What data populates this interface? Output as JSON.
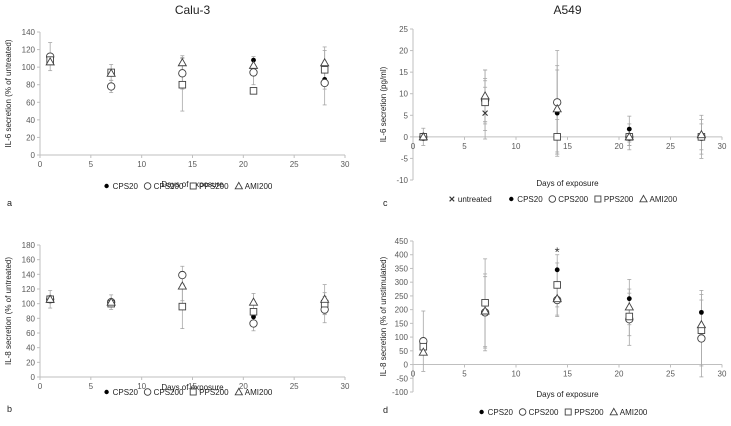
{
  "chart_data": [
    {
      "type": "scatter",
      "panel_label": "a",
      "title": "Calu-3",
      "xlabel": "Days of exposure",
      "ylabel": "IL-6 secretion (% of untreated)",
      "xlim": [
        0,
        30
      ],
      "ylim": [
        0,
        140
      ],
      "xticks": [
        "0",
        "5",
        "10",
        "15",
        "20",
        "25",
        "30"
      ],
      "yticks": [
        "0",
        "20",
        "40",
        "60",
        "80",
        "100",
        "120",
        "140"
      ],
      "grid": false,
      "legend_position": "bottom",
      "series": [
        {
          "name": "CPS20",
          "marker": "dot",
          "points": [
            [
              1,
              108,
              null
            ],
            [
              7,
              80,
              null
            ],
            [
              14,
              93,
              null
            ],
            [
              21,
              108,
              null
            ],
            [
              28,
              86,
              null
            ]
          ]
        },
        {
          "name": "CPS200",
          "marker": "circle",
          "points": [
            [
              1,
              112,
              16
            ],
            [
              7,
              78,
              7
            ],
            [
              14,
              93,
              18
            ],
            [
              21,
              94,
              14
            ],
            [
              28,
              82,
              25
            ]
          ]
        },
        {
          "name": "PPS200",
          "marker": "square",
          "points": [
            [
              1,
              108,
              null
            ],
            [
              7,
              94,
              9
            ],
            [
              14,
              80,
              30
            ],
            [
              21,
              73,
              null
            ],
            [
              28,
              97,
              22
            ]
          ]
        },
        {
          "name": "AMI200",
          "marker": "triangle",
          "points": [
            [
              1,
              106,
              null
            ],
            [
              7,
              93,
              null
            ],
            [
              14,
              105,
              8
            ],
            [
              21,
              102,
              10
            ],
            [
              28,
              105,
              18
            ]
          ]
        }
      ]
    },
    {
      "type": "scatter",
      "panel_label": "c",
      "title": "A549",
      "xlabel": "Days of exposure",
      "ylabel": "IL-6 secretion (pg/ml)",
      "xlim": [
        0,
        30
      ],
      "ylim": [
        -10,
        25
      ],
      "xticks": [
        "0",
        "5",
        "10",
        "15",
        "20",
        "25",
        "30"
      ],
      "yticks": [
        "-10",
        "-5",
        "0",
        "5",
        "10",
        "15",
        "20",
        "25"
      ],
      "grid": false,
      "legend_position": "bottom",
      "series": [
        {
          "name": "untreated",
          "marker": "x",
          "points": [
            [
              1,
              0,
              2
            ],
            [
              7,
              5.5,
              6
            ],
            [
              14,
              7,
              null
            ],
            [
              21,
              0,
              null
            ],
            [
              28,
              0,
              null
            ]
          ]
        },
        {
          "name": "CPS20",
          "marker": "dot",
          "points": [
            [
              1,
              0,
              null
            ],
            [
              7,
              8.5,
              7
            ],
            [
              14,
              5.5,
              10
            ],
            [
              21,
              1.8,
              3
            ],
            [
              28,
              0,
              5
            ]
          ]
        },
        {
          "name": "CPS200",
          "marker": "circle",
          "points": [
            [
              1,
              0,
              null
            ],
            [
              7,
              8.5,
              5
            ],
            [
              14,
              8,
              12
            ],
            [
              21,
              0,
              3
            ],
            [
              28,
              0,
              4
            ]
          ]
        },
        {
          "name": "PPS200",
          "marker": "square",
          "points": [
            [
              1,
              0,
              null
            ],
            [
              7,
              8,
              5
            ],
            [
              14,
              0,
              4
            ],
            [
              21,
              0,
              2
            ],
            [
              28,
              0,
              3
            ]
          ]
        },
        {
          "name": "AMI200",
          "marker": "triangle",
          "points": [
            [
              1,
              0,
              null
            ],
            [
              7,
              9.5,
              6
            ],
            [
              14,
              6.5,
              10
            ],
            [
              21,
              0,
              2
            ],
            [
              28,
              0.5,
              null
            ]
          ]
        }
      ]
    },
    {
      "type": "scatter",
      "panel_label": "b",
      "title": "",
      "xlabel": "Days of exposure",
      "ylabel": "IL-8 secretion (% of untreated)",
      "xlim": [
        0,
        30
      ],
      "ylim": [
        0,
        180
      ],
      "xticks": [
        "0",
        "5",
        "10",
        "15",
        "20",
        "25",
        "30"
      ],
      "yticks": [
        "0",
        "20",
        "40",
        "60",
        "80",
        "100",
        "120",
        "140",
        "160",
        "180"
      ],
      "grid": false,
      "legend_position": "bottom",
      "series": [
        {
          "name": "CPS20",
          "marker": "dot",
          "points": [
            [
              1,
              108,
              null
            ],
            [
              7,
              104,
              null
            ],
            [
              14,
              124,
              null
            ],
            [
              21,
              82,
              null
            ],
            [
              28,
              102,
              null
            ]
          ]
        },
        {
          "name": "CPS200",
          "marker": "circle",
          "points": [
            [
              1,
              106,
              12
            ],
            [
              7,
              102,
              10
            ],
            [
              14,
              139,
              12
            ],
            [
              21,
              73,
              10
            ],
            [
              28,
              92,
              18
            ]
          ]
        },
        {
          "name": "PPS200",
          "marker": "square",
          "points": [
            [
              1,
              106,
              null
            ],
            [
              7,
              100,
              null
            ],
            [
              14,
              96,
              30
            ],
            [
              21,
              89,
              null
            ],
            [
              28,
              100,
              15
            ]
          ]
        },
        {
          "name": "AMI200",
          "marker": "triangle",
          "points": [
            [
              1,
              106,
              null
            ],
            [
              7,
              102,
              null
            ],
            [
              14,
              124,
              20
            ],
            [
              21,
              102,
              12
            ],
            [
              28,
              106,
              20
            ]
          ]
        }
      ]
    },
    {
      "type": "scatter",
      "panel_label": "d",
      "title": "",
      "xlabel": "Days of exposure",
      "ylabel": "IL-8 secretion (% of unstimulated)",
      "xlim": [
        0,
        30
      ],
      "ylim": [
        -100,
        450
      ],
      "xticks": [
        "0",
        "5",
        "10",
        "15",
        "20",
        "25",
        "30"
      ],
      "yticks": [
        "-100",
        "-50",
        "0",
        "50",
        "100",
        "150",
        "200",
        "250",
        "300",
        "350",
        "400",
        "450"
      ],
      "grid": false,
      "legend_position": "bottom",
      "annotations": [
        {
          "text": "*",
          "x": 14,
          "y": 415
        }
      ],
      "series": [
        {
          "name": "CPS20",
          "marker": "dot",
          "points": [
            [
              1,
              60,
              null
            ],
            [
              7,
              190,
              130
            ],
            [
              14,
              345,
              55
            ],
            [
              21,
              240,
              70
            ],
            [
              28,
              190,
              80
            ]
          ]
        },
        {
          "name": "CPS200",
          "marker": "circle",
          "points": [
            [
              1,
              85,
              110
            ],
            [
              7,
              190,
              140
            ],
            [
              14,
              235,
              60
            ],
            [
              21,
              165,
              95
            ],
            [
              28,
              95,
              140
            ]
          ]
        },
        {
          "name": "PPS200",
          "marker": "square",
          "points": [
            [
              1,
              65,
              null
            ],
            [
              7,
              225,
              160
            ],
            [
              14,
              290,
              80
            ],
            [
              21,
              175,
              70
            ],
            [
              28,
              125,
              130
            ]
          ]
        },
        {
          "name": "AMI200",
          "marker": "triangle",
          "points": [
            [
              1,
              45,
              null
            ],
            [
              7,
              195,
              null
            ],
            [
              14,
              240,
              60
            ],
            [
              21,
              210,
              65
            ],
            [
              28,
              145,
              null
            ]
          ]
        }
      ]
    }
  ]
}
